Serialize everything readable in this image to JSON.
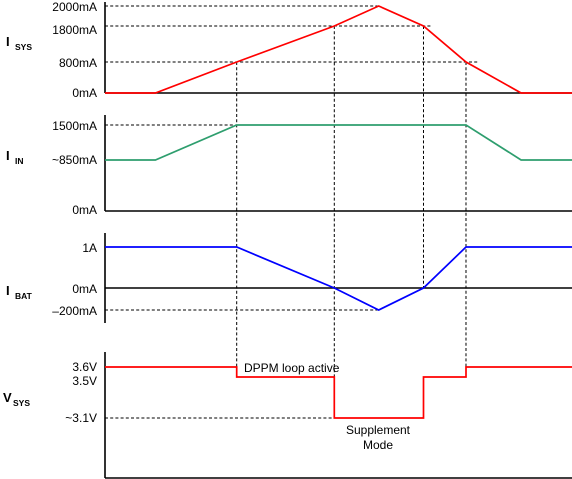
{
  "chart_data": [
    {
      "type": "line",
      "ylabel": "I",
      "ylabel_sub": "SYS",
      "color": "#ff0000",
      "y_ticks": [
        {
          "label": "2000mA",
          "value": 2000
        },
        {
          "label": "1800mA",
          "value": 1800
        },
        {
          "label": "800mA",
          "value": 800
        },
        {
          "label": "0mA",
          "value": 0
        }
      ],
      "points": [
        {
          "t": 0,
          "v": 0
        },
        {
          "t": 0.108,
          "v": 0
        },
        {
          "t": 0.282,
          "v": 800
        },
        {
          "t": 0.491,
          "v": 1800
        },
        {
          "t": 0.586,
          "v": 2000
        },
        {
          "t": 0.682,
          "v": 1800
        },
        {
          "t": 0.773,
          "v": 800
        },
        {
          "t": 0.891,
          "v": 0
        },
        {
          "t": 1,
          "v": 0
        }
      ]
    },
    {
      "type": "line",
      "ylabel": "I",
      "ylabel_sub": "IN",
      "color": "#2e9e6e",
      "y_ticks": [
        {
          "label": "1500mA",
          "value": 1500
        },
        {
          "label": "~850mA",
          "value": 850
        },
        {
          "label": "0mA",
          "value": 0
        }
      ],
      "points": [
        {
          "t": 0,
          "v": 850
        },
        {
          "t": 0.108,
          "v": 850
        },
        {
          "t": 0.282,
          "v": 1500
        },
        {
          "t": 0.773,
          "v": 1500
        },
        {
          "t": 0.891,
          "v": 850
        },
        {
          "t": 1,
          "v": 850
        }
      ]
    },
    {
      "type": "line",
      "ylabel": "I",
      "ylabel_sub": "BAT",
      "color": "#0000ff",
      "y_ticks": [
        {
          "label": "1A",
          "value": 1000
        },
        {
          "label": "0mA",
          "value": 0
        },
        {
          "label": "–200mA",
          "value": -200
        }
      ],
      "points": [
        {
          "t": 0,
          "v": 1000
        },
        {
          "t": 0.282,
          "v": 1000
        },
        {
          "t": 0.491,
          "v": 0
        },
        {
          "t": 0.586,
          "v": -200
        },
        {
          "t": 0.682,
          "v": 0
        },
        {
          "t": 0.773,
          "v": 1000
        },
        {
          "t": 1,
          "v": 1000
        }
      ]
    },
    {
      "type": "line",
      "ylabel": "V",
      "ylabel_sub": "SYS",
      "color": "#ff0000",
      "y_ticks": [
        {
          "label": "3.6V",
          "value": 3.6
        },
        {
          "label": "3.5V",
          "value": 3.5
        },
        {
          "label": "~3.1V",
          "value": 3.1
        }
      ],
      "points": [
        {
          "t": 0,
          "v": 3.6
        },
        {
          "t": 0.282,
          "v": 3.6
        },
        {
          "t": 0.282,
          "v": 3.5
        },
        {
          "t": 0.491,
          "v": 3.5
        },
        {
          "t": 0.491,
          "v": 3.1
        },
        {
          "t": 0.682,
          "v": 3.1
        },
        {
          "t": 0.682,
          "v": 3.5
        },
        {
          "t": 0.773,
          "v": 3.5
        },
        {
          "t": 0.773,
          "v": 3.6
        },
        {
          "t": 1,
          "v": 3.6
        }
      ],
      "annotations": [
        "DPPM loop active",
        "Supplement",
        "Mode"
      ]
    }
  ]
}
